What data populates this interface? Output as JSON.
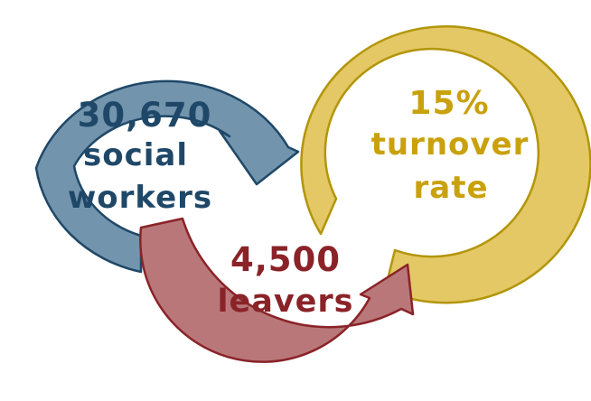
{
  "blocks": {
    "blue": {
      "line1": "30,670",
      "line2": "social",
      "line3": "workers",
      "fill": "#7394ad",
      "stroke": "#1f4868",
      "text_color": "#1f4868"
    },
    "yellow": {
      "line1": "15%",
      "line2": "turnover",
      "line3": "rate",
      "fill": "#e3c865",
      "stroke": "#b3950a",
      "text_color": "#c9a10c"
    },
    "red": {
      "line1": "4,500",
      "line2": "leavers",
      "fill": "#b97779",
      "stroke": "#8a2328",
      "text_color": "#8a2328"
    }
  }
}
